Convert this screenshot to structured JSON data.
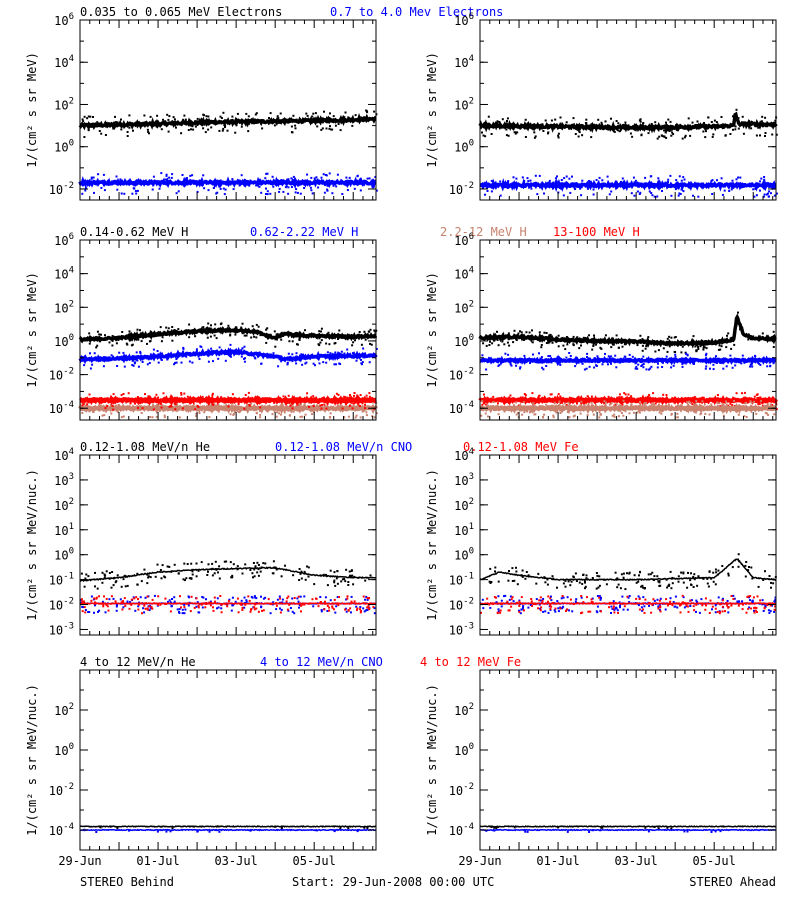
{
  "footer": {
    "left": "STEREO Behind",
    "center": "Start: 29-Jun-2008 00:00 UTC",
    "right": "STEREO Ahead"
  },
  "colors": {
    "black": "#000000",
    "blue": "#0000ff",
    "red": "#ff0000",
    "salmon": "#c8826e"
  },
  "chart_data": [
    {
      "type": "scatter",
      "title": "0.035 to 0.065 MeV Electrons",
      "headers": [
        {
          "text": "0.035 to 0.065 MeV Electrons",
          "color": "#000000"
        },
        {
          "text": "0.7 to 4.0 Mev Electrons",
          "color": "#0000ff"
        }
      ],
      "panel": "STEREO Behind",
      "ylabel": "1/(cm² s sr MeV)",
      "yscale": "log",
      "ylim": [
        0.003,
        1000000
      ],
      "yticks": [
        {
          "v": 0.01,
          "b": "10",
          "e": "-2"
        },
        {
          "v": 1,
          "b": "10",
          "e": "0"
        },
        {
          "v": 100,
          "b": "10",
          "e": "2"
        },
        {
          "v": 10000,
          "b": "10",
          "e": "4"
        },
        {
          "v": 1000000,
          "b": "10",
          "e": "6"
        }
      ],
      "xlim": [
        "2008-06-29",
        "2008-07-06T14:00"
      ],
      "series": [
        {
          "name": "0.035 to 0.065 MeV Electrons",
          "color": "#000000",
          "x": [
            "2008-06-29",
            "2008-06-30",
            "2008-07-01",
            "2008-07-02",
            "2008-07-03",
            "2008-07-04",
            "2008-07-05",
            "2008-07-06",
            "2008-07-06T14:00"
          ],
          "y": [
            10,
            11,
            12,
            14,
            15,
            16,
            17,
            19,
            21
          ]
        },
        {
          "name": "0.7 to 4.0 Mev Electrons",
          "color": "#0000ff",
          "x": [
            "2008-06-29",
            "2008-07-06T14:00"
          ],
          "y": [
            0.02,
            0.02
          ]
        }
      ]
    },
    {
      "type": "scatter",
      "panel": "STEREO Ahead",
      "ylabel": "1/(cm² s sr MeV)",
      "yscale": "log",
      "ylim": [
        0.003,
        1000000
      ],
      "yticks": [
        {
          "v": 0.01,
          "b": "10",
          "e": "-2"
        },
        {
          "v": 1,
          "b": "10",
          "e": "0"
        },
        {
          "v": 100,
          "b": "10",
          "e": "2"
        },
        {
          "v": 10000,
          "b": "10",
          "e": "4"
        },
        {
          "v": 1000000,
          "b": "10",
          "e": "6"
        }
      ],
      "xlim": [
        "2008-06-29",
        "2008-07-06T14:00"
      ],
      "series": [
        {
          "name": "0.035 to 0.065 MeV Electrons",
          "color": "#000000",
          "x": [
            "2008-06-29",
            "2008-07-01",
            "2008-07-03",
            "2008-07-05",
            "2008-07-05T12:00",
            "2008-07-05T13:00",
            "2008-07-05T15:00",
            "2008-07-06T14:00"
          ],
          "y": [
            10,
            9,
            8,
            9,
            10,
            40,
            12,
            11
          ]
        },
        {
          "name": "0.7 to 4.0 Mev Electrons",
          "color": "#0000ff",
          "x": [
            "2008-06-29",
            "2008-07-06T14:00"
          ],
          "y": [
            0.015,
            0.015
          ]
        }
      ]
    },
    {
      "type": "scatter",
      "headers": [
        {
          "text": "0.14-0.62 MeV H",
          "color": "#000000"
        },
        {
          "text": "0.62-2.22 MeV H",
          "color": "#0000ff"
        },
        {
          "text": "2.2-12 MeV H",
          "color": "#c8826e"
        },
        {
          "text": "13-100 MeV H",
          "color": "#ff0000"
        }
      ],
      "panel": "STEREO Behind",
      "ylabel": "1/(cm² s sr MeV)",
      "yscale": "log",
      "ylim": [
        2e-05,
        1000000
      ],
      "yticks": [
        {
          "v": 0.0001,
          "b": "10",
          "e": "-4"
        },
        {
          "v": 0.01,
          "b": "10",
          "e": "-2"
        },
        {
          "v": 1,
          "b": "10",
          "e": "0"
        },
        {
          "v": 100,
          "b": "10",
          "e": "2"
        },
        {
          "v": 10000,
          "b": "10",
          "e": "4"
        },
        {
          "v": 1000000,
          "b": "10",
          "e": "6"
        }
      ],
      "xlim": [
        "2008-06-29",
        "2008-07-06T14:00"
      ],
      "series": [
        {
          "name": "0.14-0.62 MeV H",
          "color": "#000000",
          "x": [
            "2008-06-29",
            "2008-06-30",
            "2008-07-01",
            "2008-07-02",
            "2008-07-03",
            "2008-07-03T12:00",
            "2008-07-04",
            "2008-07-04T06:00",
            "2008-07-04T12:00",
            "2008-07-05",
            "2008-07-06",
            "2008-07-06T14:00"
          ],
          "y": [
            1.2,
            1.5,
            2.5,
            3.8,
            4.5,
            3.5,
            1.5,
            2.8,
            2.2,
            2.0,
            1.8,
            2.0
          ]
        },
        {
          "name": "0.62-2.22 MeV H",
          "color": "#0000ff",
          "x": [
            "2008-06-29",
            "2008-06-30",
            "2008-07-01",
            "2008-07-02",
            "2008-07-03",
            "2008-07-04",
            "2008-07-04T06:00",
            "2008-07-05",
            "2008-07-06",
            "2008-07-06T14:00"
          ],
          "y": [
            0.08,
            0.09,
            0.12,
            0.18,
            0.22,
            0.12,
            0.08,
            0.12,
            0.13,
            0.14
          ]
        },
        {
          "name": "2.2-12 MeV H",
          "color": "#c8826e",
          "x": [
            "2008-06-29",
            "2008-07-06T14:00"
          ],
          "y": [
            0.0001,
            0.0001
          ]
        },
        {
          "name": "13-100 MeV H",
          "color": "#ff0000",
          "x": [
            "2008-06-29",
            "2008-07-06T14:00"
          ],
          "y": [
            0.0003,
            0.0003
          ]
        }
      ]
    },
    {
      "type": "scatter",
      "panel": "STEREO Ahead",
      "ylabel": "1/(cm² s sr MeV)",
      "yscale": "log",
      "ylim": [
        2e-05,
        1000000
      ],
      "yticks": [
        {
          "v": 0.0001,
          "b": "10",
          "e": "-4"
        },
        {
          "v": 0.01,
          "b": "10",
          "e": "-2"
        },
        {
          "v": 1,
          "b": "10",
          "e": "0"
        },
        {
          "v": 100,
          "b": "10",
          "e": "2"
        },
        {
          "v": 10000,
          "b": "10",
          "e": "4"
        },
        {
          "v": 1000000,
          "b": "10",
          "e": "6"
        }
      ],
      "xlim": [
        "2008-06-29",
        "2008-07-06T14:00"
      ],
      "series": [
        {
          "name": "0.14-0.62 MeV H",
          "color": "#000000",
          "x": [
            "2008-06-29",
            "2008-06-30",
            "2008-07-01",
            "2008-07-02",
            "2008-07-03",
            "2008-07-04",
            "2008-07-05",
            "2008-07-05T12:00",
            "2008-07-05T14:00",
            "2008-07-05T18:00",
            "2008-07-06",
            "2008-07-06T14:00"
          ],
          "y": [
            1.5,
            1.8,
            1.2,
            1.0,
            0.9,
            0.7,
            0.8,
            1.2,
            30,
            2.5,
            1.4,
            1.3
          ]
        },
        {
          "name": "0.62-2.22 MeV H",
          "color": "#0000ff",
          "x": [
            "2008-06-29",
            "2008-07-06T14:00"
          ],
          "y": [
            0.07,
            0.07
          ]
        },
        {
          "name": "13-100 MeV H",
          "color": "#ff0000",
          "x": [
            "2008-06-29",
            "2008-07-06T14:00"
          ],
          "y": [
            0.0003,
            0.0003
          ]
        },
        {
          "name": "2.2-12 MeV H",
          "color": "#c8826e",
          "x": [
            "2008-06-29",
            "2008-07-06T14:00"
          ],
          "y": [
            0.0001,
            0.0001
          ]
        }
      ]
    },
    {
      "type": "scatter",
      "headers": [
        {
          "text": "0.12-1.08 MeV/n He",
          "color": "#000000"
        },
        {
          "text": "0.12-1.08 MeV/n CNO",
          "color": "#0000ff"
        },
        {
          "text": "0.12-1.08 MeV Fe",
          "color": "#ff0000"
        }
      ],
      "panel": "STEREO Behind",
      "ylabel": "1/(cm² s sr MeV/nuc.)",
      "yscale": "log",
      "ylim": [
        0.0006,
        10000
      ],
      "yticks": [
        {
          "v": 0.001,
          "b": "10",
          "e": "-3"
        },
        {
          "v": 0.01,
          "b": "10",
          "e": "-2"
        },
        {
          "v": 0.1,
          "b": "10",
          "e": "-1"
        },
        {
          "v": 1,
          "b": "10",
          "e": "0"
        },
        {
          "v": 10,
          "b": "10",
          "e": "1"
        },
        {
          "v": 100,
          "b": "10",
          "e": "2"
        },
        {
          "v": 1000,
          "b": "10",
          "e": "3"
        },
        {
          "v": 10000,
          "b": "10",
          "e": "4"
        }
      ],
      "xlim": [
        "2008-06-29",
        "2008-07-06T14:00"
      ],
      "series": [
        {
          "name": "0.12-1.08 MeV/n He",
          "color": "#000000",
          "x": [
            "2008-06-29",
            "2008-06-30",
            "2008-07-01",
            "2008-07-02",
            "2008-07-03",
            "2008-07-04",
            "2008-07-05",
            "2008-07-06",
            "2008-07-06T14:00"
          ],
          "y": [
            0.09,
            0.12,
            0.2,
            0.25,
            0.28,
            0.3,
            0.15,
            0.12,
            0.12
          ]
        },
        {
          "name": "0.12-1.08 MeV/n CNO",
          "color": "#0000ff",
          "x": [
            "2008-06-29",
            "2008-07-06T14:00"
          ],
          "y": [
            0.011,
            0.011
          ]
        },
        {
          "name": "0.12-1.08 MeV Fe",
          "color": "#ff0000",
          "x": [
            "2008-06-29",
            "2008-07-06T14:00"
          ],
          "y": [
            0.011,
            0.011
          ]
        }
      ]
    },
    {
      "type": "scatter",
      "panel": "STEREO Ahead",
      "ylabel": "1/(cm² s sr MeV/nuc.)",
      "yscale": "log",
      "ylim": [
        0.0006,
        10000
      ],
      "yticks": [
        {
          "v": 0.001,
          "b": "10",
          "e": "-3"
        },
        {
          "v": 0.01,
          "b": "10",
          "e": "-2"
        },
        {
          "v": 0.1,
          "b": "10",
          "e": "-1"
        },
        {
          "v": 1,
          "b": "10",
          "e": "0"
        },
        {
          "v": 10,
          "b": "10",
          "e": "1"
        },
        {
          "v": 100,
          "b": "10",
          "e": "2"
        },
        {
          "v": 1000,
          "b": "10",
          "e": "3"
        },
        {
          "v": 10000,
          "b": "10",
          "e": "4"
        }
      ],
      "xlim": [
        "2008-06-29",
        "2008-07-06T14:00"
      ],
      "series": [
        {
          "name": "0.12-1.08 MeV/n He",
          "color": "#000000",
          "x": [
            "2008-06-29",
            "2008-06-29T12:00",
            "2008-06-30",
            "2008-07-01",
            "2008-07-03",
            "2008-07-05",
            "2008-07-05T14:00",
            "2008-07-06",
            "2008-07-06T14:00"
          ],
          "y": [
            0.1,
            0.2,
            0.15,
            0.1,
            0.1,
            0.12,
            0.7,
            0.12,
            0.1
          ]
        },
        {
          "name": "0.12-1.08 MeV/n CNO",
          "color": "#0000ff",
          "x": [
            "2008-06-29",
            "2008-07-06T14:00"
          ],
          "y": [
            0.011,
            0.011
          ]
        },
        {
          "name": "0.12-1.08 MeV Fe",
          "color": "#ff0000",
          "x": [
            "2008-06-29",
            "2008-07-06T14:00"
          ],
          "y": [
            0.011,
            0.011
          ]
        }
      ]
    },
    {
      "type": "scatter",
      "headers": [
        {
          "text": "4 to 12 MeV/n He",
          "color": "#000000"
        },
        {
          "text": "4 to 12 MeV/n CNO",
          "color": "#0000ff"
        },
        {
          "text": "4 to 12 MeV Fe",
          "color": "#ff0000"
        }
      ],
      "panel": "STEREO Behind",
      "ylabel": "1/(cm² s sr MeV/nuc.)",
      "yscale": "log",
      "ylim": [
        1e-05,
        10000
      ],
      "yticks": [
        {
          "v": 0.0001,
          "b": "10",
          "e": "-4"
        },
        {
          "v": 0.01,
          "b": "10",
          "e": "-2"
        },
        {
          "v": 1,
          "b": "10",
          "e": "0"
        },
        {
          "v": 100,
          "b": "10",
          "e": "2"
        }
      ],
      "xlim": [
        "2008-06-29",
        "2008-07-06T14:00"
      ],
      "xticks": [
        {
          "x": "2008-06-29",
          "label": "29-Jun"
        },
        {
          "x": "2008-07-01",
          "label": "01-Jul"
        },
        {
          "x": "2008-07-03",
          "label": "03-Jul"
        },
        {
          "x": "2008-07-05",
          "label": "05-Jul"
        }
      ],
      "series": [
        {
          "name": "4 to 12 MeV/n He",
          "color": "#000000",
          "x": [
            "2008-06-29",
            "2008-07-06T14:00"
          ],
          "y": [
            0.00015,
            0.00015
          ]
        },
        {
          "name": "4 to 12 MeV/n CNO",
          "color": "#0000ff",
          "x": [
            "2008-06-29",
            "2008-07-06T14:00"
          ],
          "y": [
            0.0001,
            0.0001
          ]
        }
      ]
    },
    {
      "type": "scatter",
      "panel": "STEREO Ahead",
      "ylabel": "1/(cm² s sr MeV/nuc.)",
      "yscale": "log",
      "ylim": [
        1e-05,
        10000
      ],
      "yticks": [
        {
          "v": 0.0001,
          "b": "10",
          "e": "-4"
        },
        {
          "v": 0.01,
          "b": "10",
          "e": "-2"
        },
        {
          "v": 1,
          "b": "10",
          "e": "0"
        },
        {
          "v": 100,
          "b": "10",
          "e": "2"
        }
      ],
      "xlim": [
        "2008-06-29",
        "2008-07-06T14:00"
      ],
      "xticks": [
        {
          "x": "2008-06-29",
          "label": "29-Jun"
        },
        {
          "x": "2008-07-01",
          "label": "01-Jul"
        },
        {
          "x": "2008-07-03",
          "label": "03-Jul"
        },
        {
          "x": "2008-07-05",
          "label": "05-Jul"
        }
      ],
      "series": [
        {
          "name": "4 to 12 MeV/n He",
          "color": "#000000",
          "x": [
            "2008-06-29",
            "2008-07-06T14:00"
          ],
          "y": [
            0.00015,
            0.00015
          ]
        },
        {
          "name": "4 to 12 MeV/n CNO",
          "color": "#0000ff",
          "x": [
            "2008-06-29",
            "2008-07-06T14:00"
          ],
          "y": [
            0.0001,
            0.0001
          ]
        }
      ]
    }
  ]
}
